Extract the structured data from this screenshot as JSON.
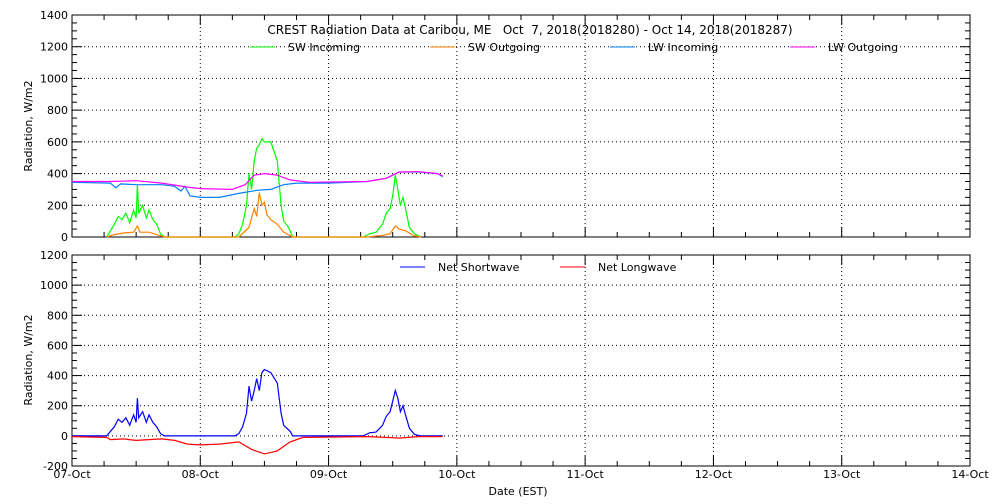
{
  "chart_data": [
    {
      "type": "line",
      "title": "CREST Radiation Data at Caribou, ME   Oct  7, 2018(2018280) - Oct 14, 2018(2018287)",
      "ylabel": "Radiation, W/m2",
      "xlabel": "",
      "ylim": [
        0,
        1400
      ],
      "yticks": [
        0,
        200,
        400,
        600,
        800,
        1000,
        1200,
        1400
      ],
      "xlim_days": [
        0,
        7
      ],
      "grid": true,
      "legend_placement": "top",
      "series": [
        {
          "name": "SW Incoming",
          "color": "#00ff00",
          "points": [
            [
              0.27,
              0
            ],
            [
              0.3,
              40
            ],
            [
              0.33,
              80
            ],
            [
              0.36,
              130
            ],
            [
              0.39,
              110
            ],
            [
              0.42,
              150
            ],
            [
              0.45,
              90
            ],
            [
              0.48,
              170
            ],
            [
              0.5,
              120
            ],
            [
              0.51,
              330
            ],
            [
              0.52,
              150
            ],
            [
              0.55,
              200
            ],
            [
              0.58,
              120
            ],
            [
              0.6,
              170
            ],
            [
              0.63,
              110
            ],
            [
              0.66,
              80
            ],
            [
              0.69,
              20
            ],
            [
              0.72,
              0
            ],
            [
              1.27,
              0
            ],
            [
              1.3,
              20
            ],
            [
              1.33,
              80
            ],
            [
              1.36,
              200
            ],
            [
              1.38,
              400
            ],
            [
              1.4,
              300
            ],
            [
              1.42,
              480
            ],
            [
              1.44,
              560
            ],
            [
              1.46,
              580
            ],
            [
              1.48,
              620
            ],
            [
              1.5,
              600
            ],
            [
              1.55,
              600
            ],
            [
              1.6,
              480
            ],
            [
              1.63,
              200
            ],
            [
              1.65,
              100
            ],
            [
              1.68,
              70
            ],
            [
              1.7,
              40
            ],
            [
              1.72,
              0
            ],
            [
              2.27,
              0
            ],
            [
              2.32,
              20
            ],
            [
              2.37,
              30
            ],
            [
              2.42,
              80
            ],
            [
              2.45,
              150
            ],
            [
              2.48,
              180
            ],
            [
              2.5,
              260
            ],
            [
              2.52,
              390
            ],
            [
              2.54,
              300
            ],
            [
              2.56,
              200
            ],
            [
              2.58,
              250
            ],
            [
              2.6,
              180
            ],
            [
              2.63,
              60
            ],
            [
              2.67,
              20
            ],
            [
              2.72,
              0
            ]
          ]
        },
        {
          "name": "SW Outgoing",
          "color": "#ff8000",
          "points": [
            [
              0.27,
              0
            ],
            [
              0.33,
              15
            ],
            [
              0.4,
              25
            ],
            [
              0.48,
              30
            ],
            [
              0.51,
              70
            ],
            [
              0.53,
              30
            ],
            [
              0.6,
              30
            ],
            [
              0.66,
              15
            ],
            [
              0.72,
              0
            ],
            [
              1.3,
              0
            ],
            [
              1.38,
              60
            ],
            [
              1.42,
              180
            ],
            [
              1.44,
              130
            ],
            [
              1.46,
              280
            ],
            [
              1.48,
              200
            ],
            [
              1.5,
              220
            ],
            [
              1.52,
              140
            ],
            [
              1.55,
              110
            ],
            [
              1.6,
              80
            ],
            [
              1.65,
              30
            ],
            [
              1.72,
              0
            ],
            [
              2.3,
              0
            ],
            [
              2.42,
              10
            ],
            [
              2.48,
              20
            ],
            [
              2.52,
              70
            ],
            [
              2.55,
              50
            ],
            [
              2.6,
              40
            ],
            [
              2.66,
              10
            ],
            [
              2.72,
              0
            ]
          ]
        },
        {
          "name": "LW Incoming",
          "color": "#0080ff",
          "points": [
            [
              0,
              345
            ],
            [
              0.3,
              340
            ],
            [
              0.34,
              310
            ],
            [
              0.38,
              335
            ],
            [
              0.5,
              330
            ],
            [
              0.7,
              330
            ],
            [
              0.8,
              320
            ],
            [
              0.85,
              290
            ],
            [
              0.88,
              320
            ],
            [
              0.92,
              260
            ],
            [
              1.0,
              250
            ],
            [
              1.15,
              250
            ],
            [
              1.3,
              275
            ],
            [
              1.45,
              295
            ],
            [
              1.55,
              300
            ],
            [
              1.65,
              330
            ],
            [
              1.75,
              340
            ],
            [
              2.0,
              340
            ],
            [
              2.3,
              350
            ],
            [
              2.45,
              370
            ],
            [
              2.55,
              410
            ],
            [
              2.7,
              410
            ],
            [
              2.85,
              400
            ],
            [
              2.89,
              380
            ]
          ]
        },
        {
          "name": "LW Outgoing",
          "color": "#ff00ff",
          "points": [
            [
              0,
              350
            ],
            [
              0.3,
              350
            ],
            [
              0.5,
              355
            ],
            [
              0.7,
              340
            ],
            [
              0.9,
              315
            ],
            [
              1.0,
              305
            ],
            [
              1.25,
              300
            ],
            [
              1.35,
              330
            ],
            [
              1.42,
              390
            ],
            [
              1.5,
              400
            ],
            [
              1.6,
              390
            ],
            [
              1.7,
              360
            ],
            [
              1.85,
              345
            ],
            [
              2.3,
              350
            ],
            [
              2.45,
              370
            ],
            [
              2.55,
              410
            ],
            [
              2.7,
              412
            ],
            [
              2.85,
              400
            ],
            [
              2.89,
              385
            ]
          ]
        }
      ]
    },
    {
      "type": "line",
      "ylabel": "Radiation, W/m2",
      "xlabel": "Date (EST)",
      "ylim": [
        -200,
        1200
      ],
      "yticks": [
        -200,
        0,
        200,
        400,
        600,
        800,
        1000,
        1200
      ],
      "xticks": [
        "07-Oct",
        "08-Oct",
        "09-Oct",
        "10-Oct",
        "11-Oct",
        "12-Oct",
        "13-Oct",
        "14-Oct"
      ],
      "xlim_days": [
        0,
        7
      ],
      "grid": true,
      "legend_placement": "top",
      "series": [
        {
          "name": "Net Shortwave",
          "color": "#0000ff",
          "points": [
            [
              0,
              0
            ],
            [
              0.27,
              0
            ],
            [
              0.3,
              30
            ],
            [
              0.33,
              60
            ],
            [
              0.36,
              110
            ],
            [
              0.39,
              90
            ],
            [
              0.42,
              120
            ],
            [
              0.45,
              70
            ],
            [
              0.48,
              140
            ],
            [
              0.5,
              90
            ],
            [
              0.51,
              250
            ],
            [
              0.52,
              120
            ],
            [
              0.55,
              160
            ],
            [
              0.58,
              90
            ],
            [
              0.6,
              140
            ],
            [
              0.63,
              90
            ],
            [
              0.66,
              60
            ],
            [
              0.69,
              15
            ],
            [
              0.72,
              0
            ],
            [
              1.27,
              0
            ],
            [
              1.3,
              15
            ],
            [
              1.33,
              60
            ],
            [
              1.36,
              150
            ],
            [
              1.38,
              330
            ],
            [
              1.4,
              230
            ],
            [
              1.42,
              300
            ],
            [
              1.44,
              380
            ],
            [
              1.46,
              300
            ],
            [
              1.48,
              420
            ],
            [
              1.5,
              440
            ],
            [
              1.55,
              420
            ],
            [
              1.6,
              350
            ],
            [
              1.63,
              150
            ],
            [
              1.65,
              70
            ],
            [
              1.7,
              30
            ],
            [
              1.72,
              0
            ],
            [
              2.27,
              0
            ],
            [
              2.32,
              20
            ],
            [
              2.37,
              25
            ],
            [
              2.42,
              70
            ],
            [
              2.45,
              130
            ],
            [
              2.48,
              160
            ],
            [
              2.5,
              230
            ],
            [
              2.52,
              300
            ],
            [
              2.54,
              250
            ],
            [
              2.56,
              160
            ],
            [
              2.58,
              200
            ],
            [
              2.6,
              140
            ],
            [
              2.63,
              50
            ],
            [
              2.67,
              10
            ],
            [
              2.72,
              0
            ],
            [
              2.89,
              0
            ]
          ]
        },
        {
          "name": "Net Longwave",
          "color": "#ff0000",
          "points": [
            [
              0,
              -5
            ],
            [
              0.27,
              -10
            ],
            [
              0.3,
              -25
            ],
            [
              0.4,
              -20
            ],
            [
              0.5,
              -30
            ],
            [
              0.6,
              -25
            ],
            [
              0.7,
              -20
            ],
            [
              0.8,
              -30
            ],
            [
              0.9,
              -55
            ],
            [
              1.0,
              -60
            ],
            [
              1.15,
              -55
            ],
            [
              1.3,
              -40
            ],
            [
              1.4,
              -90
            ],
            [
              1.5,
              -120
            ],
            [
              1.6,
              -100
            ],
            [
              1.7,
              -40
            ],
            [
              1.8,
              -10
            ],
            [
              2.3,
              -5
            ],
            [
              2.45,
              -10
            ],
            [
              2.55,
              -15
            ],
            [
              2.7,
              -5
            ],
            [
              2.89,
              -5
            ]
          ]
        }
      ]
    }
  ]
}
